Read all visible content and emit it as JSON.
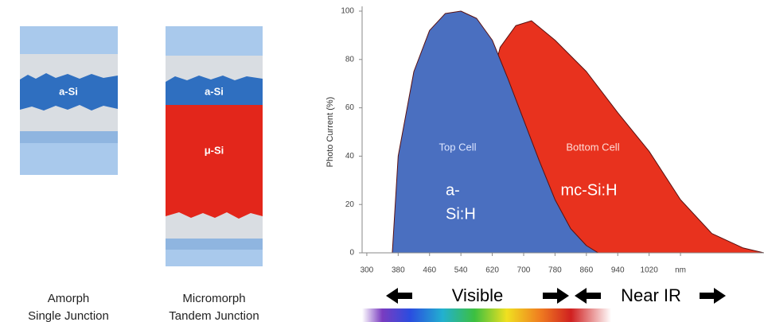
{
  "diagram": {
    "single": {
      "layer_label": "a-Si",
      "caption": [
        "Amorph",
        "Single Junction"
      ]
    },
    "tandem": {
      "layer_labels": [
        "a-Si",
        "μ-Si"
      ],
      "caption": [
        "Micromorph",
        "Tandem Junction"
      ]
    }
  },
  "chart_data": {
    "type": "area",
    "ylabel": "Photo Current (%)",
    "xlim": [
      288,
      1313
    ],
    "ylim": [
      0,
      100
    ],
    "xticks": [
      300,
      380,
      460,
      540,
      620,
      700,
      780,
      860,
      940,
      1020,
      {
        "value": 1100,
        "label": "nm"
      }
    ],
    "yticks": [
      0,
      20,
      40,
      60,
      80,
      100
    ],
    "series": [
      {
        "name": "Bottom Cell",
        "material": "mc-Si:H",
        "color": "#e8321e",
        "x": [
          600,
          640,
          680,
          720,
          780,
          860,
          940,
          1020,
          1100,
          1180,
          1260,
          1313
        ],
        "values": [
          60,
          85,
          94,
          96,
          88,
          75,
          58,
          42,
          22,
          8,
          2,
          0
        ]
      },
      {
        "name": "Top Cell",
        "material": [
          "a-",
          "Si:H"
        ],
        "color": "#4a6fc0",
        "x": [
          365,
          380,
          420,
          460,
          500,
          540,
          580,
          620,
          660,
          700,
          740,
          780,
          820,
          860,
          890
        ],
        "values": [
          0,
          40,
          75,
          92,
          99,
          100,
          97,
          88,
          72,
          55,
          38,
          22,
          10,
          3,
          0
        ]
      }
    ],
    "bands": [
      "Visible",
      "Near IR"
    ]
  }
}
